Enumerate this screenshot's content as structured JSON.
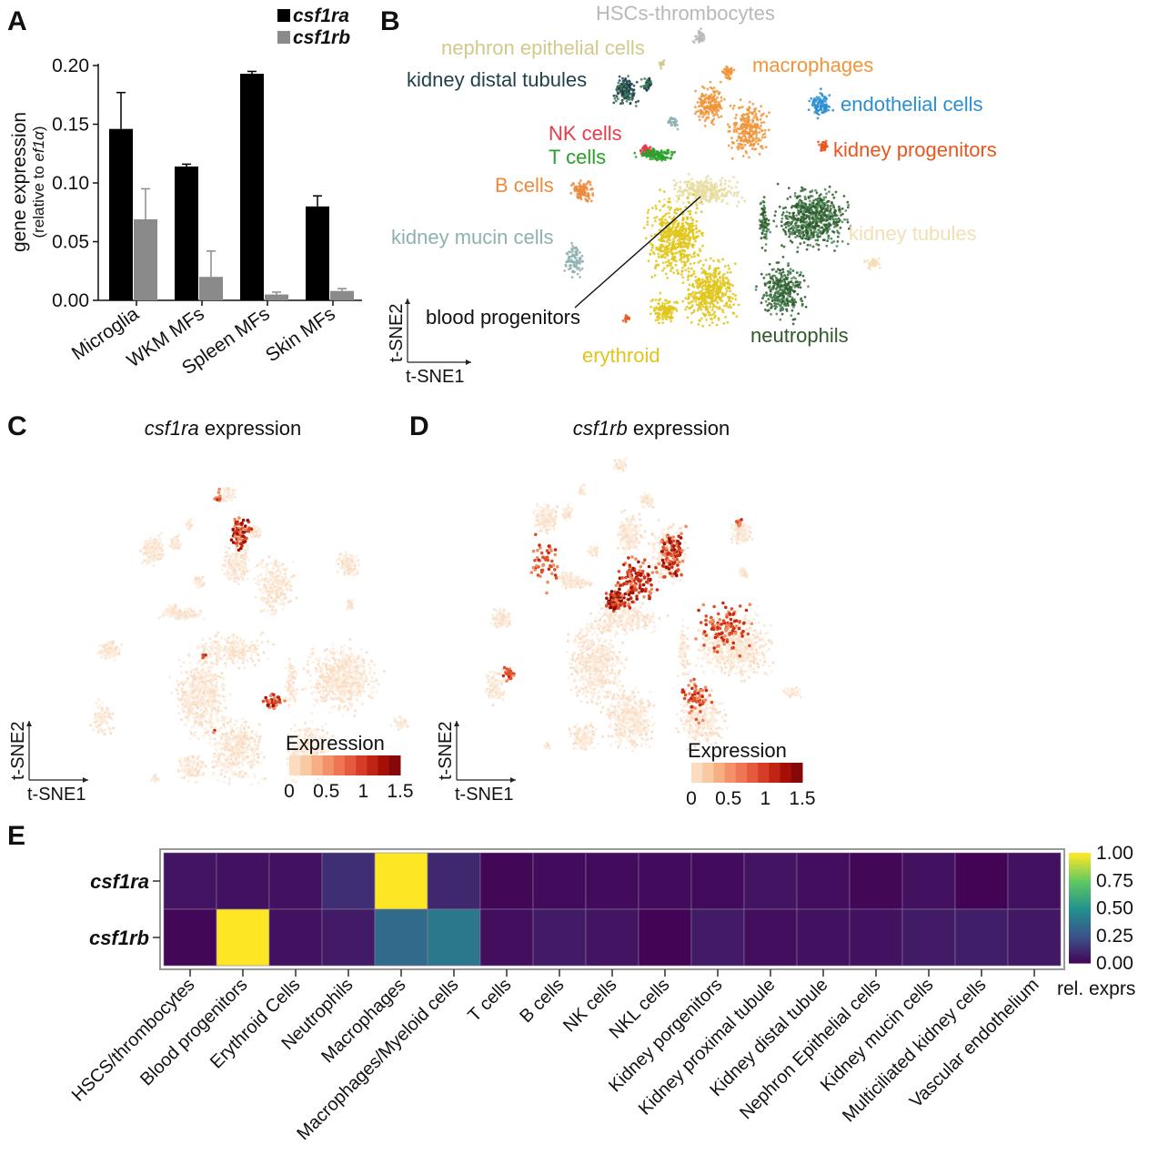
{
  "panel_labels": [
    "A",
    "B",
    "C",
    "D",
    "E"
  ],
  "chart_data": [
    {
      "panel": "A",
      "type": "bar",
      "categories": [
        "Microglia",
        "WKM MFs",
        "Spleen MFs",
        "Skin MFs"
      ],
      "series": [
        {
          "name": "csf1ra",
          "color": "#000000",
          "values": [
            0.146,
            0.114,
            0.193,
            0.08
          ],
          "errors": [
            0.031,
            0.002,
            0.002,
            0.009
          ]
        },
        {
          "name": "csf1rb",
          "color": "#8a8a8a",
          "values": [
            0.069,
            0.02,
            0.005,
            0.008
          ],
          "errors": [
            0.026,
            0.022,
            0.002,
            0.002
          ]
        }
      ],
      "ylabel": "gene expression",
      "ylabel_sub_prefix": "(relative to ",
      "ylabel_sub_gene": "ef1α",
      "ylabel_sub_suffix": ")",
      "yticks": [
        "0.00",
        "0.05",
        "0.10",
        "0.15",
        "0.20"
      ],
      "ylim": [
        0,
        0.2
      ]
    },
    {
      "panel": "B",
      "type": "scatter",
      "xlabel": "t-SNE1",
      "ylabel": "t-SNE2",
      "clusters": [
        {
          "name": "HSCs-thrombocytes",
          "color": "#b8b8b8"
        },
        {
          "name": "nephron epithelial cells",
          "color": "#d2c98a"
        },
        {
          "name": "kidney distal tubules",
          "color": "#1f3f4a"
        },
        {
          "name": "macrophages",
          "color": "#f0953a"
        },
        {
          "name": "endothelial cells",
          "color": "#2a8fd0"
        },
        {
          "name": "NK cells",
          "color": "#e83a4a"
        },
        {
          "name": "T cells",
          "color": "#2aa02a"
        },
        {
          "name": "kidney progenitors",
          "color": "#e8561e"
        },
        {
          "name": "B cells",
          "color": "#ec8a3c"
        },
        {
          "name": "kidney mucin cells",
          "color": "#8fb0b0"
        },
        {
          "name": "kidney tubules",
          "color": "#f4dfb4"
        },
        {
          "name": "blood progenitors",
          "color": "#e8dca0"
        },
        {
          "name": "erythroid",
          "color": "#e0c51a"
        },
        {
          "name": "neutrophils",
          "color": "#2e5a2a"
        }
      ]
    },
    {
      "panel": "C",
      "type": "scatter",
      "title_gene": "csf1ra",
      "title_rest": " expression",
      "xlabel": "t-SNE1",
      "ylabel": "t-SNE2",
      "legend_title": "Expression",
      "legend_ticks": [
        "0",
        "0.5",
        "1",
        "1.5"
      ],
      "range": [
        0,
        1.5
      ]
    },
    {
      "panel": "D",
      "type": "scatter",
      "title_gene": "csf1rb",
      "title_rest": " expression",
      "xlabel": "t-SNE1",
      "ylabel": "t-SNE2",
      "legend_title": "Expression",
      "legend_ticks": [
        "0",
        "0.5",
        "1",
        "1.5"
      ],
      "range": [
        0,
        1.5
      ]
    },
    {
      "panel": "E",
      "type": "heatmap",
      "rows": [
        "csf1ra",
        "csf1rb"
      ],
      "columns": [
        "HSCS/thrombocytes",
        "Blood progenitors",
        "Erythroid Cells",
        "Neutrophils",
        "Macrophages",
        "Macrophages/Myeloid cells",
        "T cells",
        "B cells",
        "NK cells",
        "NKL cells",
        "Kidney porgenitors",
        "Kidney proximal tubule",
        "Kidney distal tubule",
        "Nephron Epithelial cells",
        "Kidney mucin cells",
        "Multiciliated kidney cells",
        "Vascular endothelium"
      ],
      "values": [
        [
          0.06,
          0.05,
          0.05,
          0.14,
          1.0,
          0.12,
          0.02,
          0.03,
          0.03,
          0.03,
          0.03,
          0.06,
          0.04,
          0.02,
          0.05,
          0.01,
          0.05
        ],
        [
          0.02,
          1.0,
          0.05,
          0.08,
          0.35,
          0.4,
          0.04,
          0.08,
          0.06,
          0.01,
          0.08,
          0.04,
          0.05,
          0.05,
          0.08,
          0.09,
          0.07
        ]
      ],
      "colorbar_ticks": [
        "1.00",
        "0.75",
        "0.50",
        "0.25",
        "0.00"
      ],
      "colorbar_label": "rel. exprs"
    }
  ]
}
